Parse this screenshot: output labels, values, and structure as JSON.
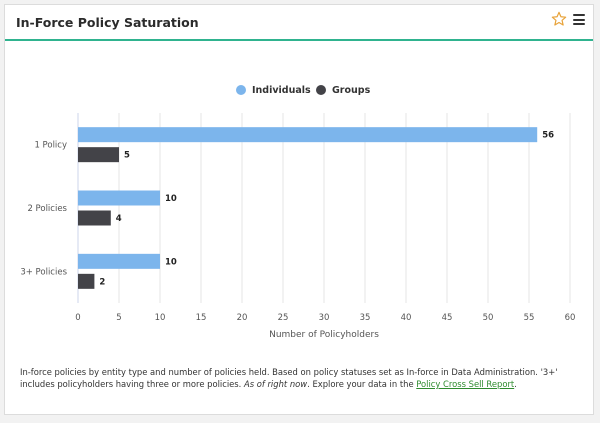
{
  "header": {
    "title": "In-Force Policy Saturation",
    "star_icon": "star-outline-icon",
    "menu_icon": "hamburger-menu-icon"
  },
  "colors": {
    "individuals": "#7cb5ec",
    "groups": "#434348",
    "accent": "#2fb38f",
    "star": "#e8a33a"
  },
  "chart_data": {
    "type": "bar",
    "orientation": "horizontal",
    "categories": [
      "1 Policy",
      "2 Policies",
      "3+ Policies"
    ],
    "series": [
      {
        "name": "Individuals",
        "values": [
          56,
          10,
          10
        ]
      },
      {
        "name": "Groups",
        "values": [
          5,
          4,
          2
        ]
      }
    ],
    "xlabel": "Number of Policyholders",
    "xlim": [
      0,
      60
    ],
    "xticks": [
      0,
      5,
      10,
      15,
      20,
      25,
      30,
      35,
      40,
      45,
      50,
      55,
      60
    ],
    "grid": true,
    "legend_placement": "top-center"
  },
  "footnote": {
    "text": "In-force policies by entity type and number of policies held. Based on policy statuses set as In-force in Data Administration. '3+' includes policyholders having three or more policies. ",
    "as_of": "As of right now",
    "mid": ". Explore your data in the ",
    "link": "Policy Cross Sell Report",
    "end": "."
  }
}
